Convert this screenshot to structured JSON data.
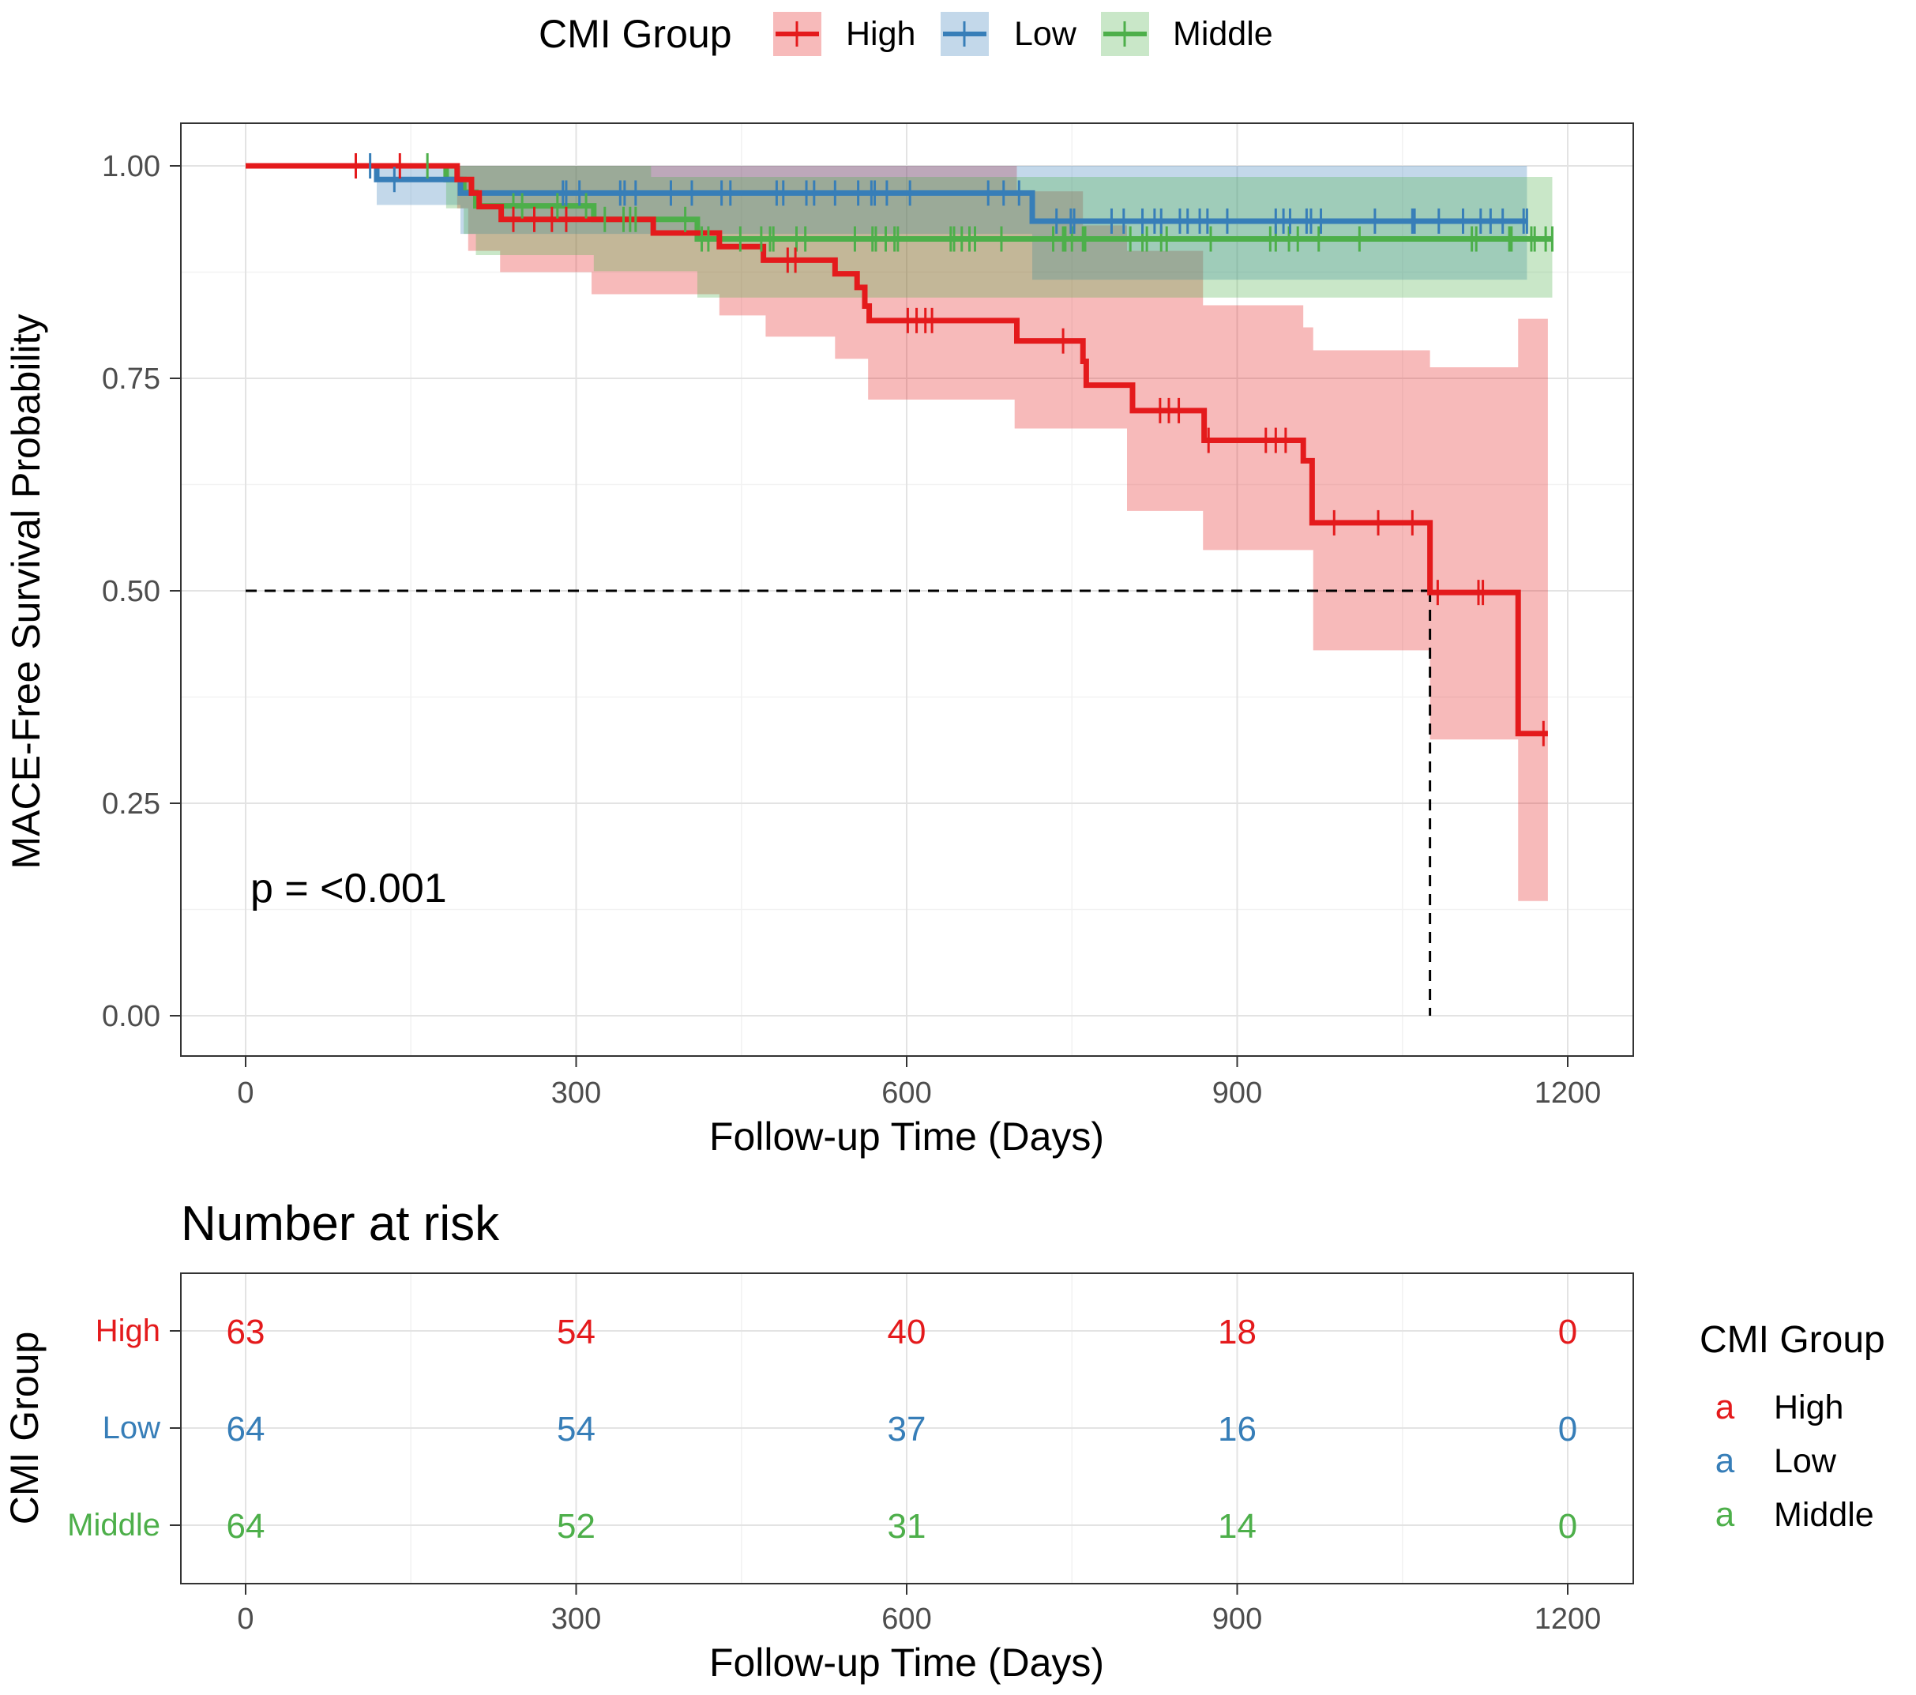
{
  "chart_data": [
    {
      "type": "line",
      "subtype": "kaplan-meier",
      "title": "",
      "xlabel": "Follow-up Time (Days)",
      "ylabel": "MACE-Free Survival Probability",
      "xlim": [
        0,
        1200
      ],
      "ylim": [
        0,
        1
      ],
      "x_ticks": [
        "0",
        "300",
        "600",
        "900",
        "1200"
      ],
      "y_ticks": [
        "0.00",
        "0.25",
        "0.50",
        "0.75",
        "1.00"
      ],
      "grid": true,
      "legend": {
        "title": "CMI Group",
        "placement": "top",
        "entries": [
          "High",
          "Low",
          "Middle"
        ]
      },
      "annotation": "p = <0.001",
      "median_line": {
        "survival": 0.5,
        "time": 1075
      },
      "series": [
        {
          "name": "High",
          "color": "#E41A1C",
          "end": 1182,
          "steps": [
            [
              0,
              1
            ],
            [
              192,
              0.984
            ],
            [
              205,
              0.968
            ],
            [
              212,
              0.952
            ],
            [
              232,
              0.937
            ],
            [
              370,
              0.921
            ],
            [
              430,
              0.905
            ],
            [
              470,
              0.889
            ],
            [
              535,
              0.873
            ],
            [
              555,
              0.857
            ],
            [
              562,
              0.835
            ],
            [
              566,
              0.818
            ],
            [
              700,
              0.794
            ],
            [
              760,
              0.77
            ],
            [
              763,
              0.742
            ],
            [
              805,
              0.712
            ],
            [
              870,
              0.677
            ],
            [
              960,
              0.653
            ],
            [
              968,
              0.58
            ],
            [
              1075,
              0.498
            ],
            [
              1155,
              0.332
            ]
          ],
          "ci_upper": [
            [
              0,
              1
            ],
            [
              600,
              1
            ],
            [
              700,
              0.97
            ],
            [
              760,
              0.93
            ],
            [
              800,
              0.9
            ],
            [
              869,
              0.836
            ],
            [
              960,
              0.81
            ],
            [
              969,
              0.783
            ],
            [
              1075,
              0.763
            ],
            [
              1155,
              0.82
            ]
          ],
          "ci_lower": [
            [
              0,
              1
            ],
            [
              192,
              0.95
            ],
            [
              202,
              0.9
            ],
            [
              231,
              0.875
            ],
            [
              314,
              0.849
            ],
            [
              430,
              0.824
            ],
            [
              472,
              0.799
            ],
            [
              535,
              0.773
            ],
            [
              565,
              0.725
            ],
            [
              698,
              0.691
            ],
            [
              800,
              0.594
            ],
            [
              869,
              0.548
            ],
            [
              969,
              0.43
            ],
            [
              1075,
              0.325
            ],
            [
              1155,
              0.135
            ]
          ],
          "censored": [
            100,
            140,
            243,
            262,
            278,
            291,
            492,
            499,
            601,
            609,
            617,
            623,
            742,
            830,
            838,
            847,
            874,
            926,
            935,
            944,
            988,
            1028,
            1059,
            1082,
            1119,
            1123,
            1178
          ]
        },
        {
          "name": "Low",
          "color": "#377EB8",
          "end": 1163,
          "steps": [
            [
              0,
              1
            ],
            [
              119,
              0.984
            ],
            [
              195,
              0.968
            ],
            [
              714,
              0.935
            ]
          ],
          "ci_upper": [
            [
              0,
              1
            ]
          ],
          "ci_lower": [
            [
              0,
              1
            ],
            [
              119,
              0.954
            ],
            [
              195,
              0.92
            ],
            [
              714,
              0.866
            ]
          ],
          "censored": [
            113,
            135,
            288,
            291,
            303,
            340,
            344,
            354,
            386,
            405,
            432,
            440,
            482,
            488,
            509,
            516,
            535,
            556,
            568,
            571,
            582,
            603,
            674,
            688,
            702,
            736,
            749,
            752,
            786,
            797,
            814,
            825,
            831,
            848,
            855,
            866,
            873,
            891,
            935,
            942,
            948,
            963,
            967,
            976,
            1025,
            1059,
            1061,
            1083,
            1105,
            1121,
            1130,
            1141,
            1160,
            1163
          ]
        },
        {
          "name": "Middle",
          "color": "#4DAF4A",
          "end": 1186,
          "steps": [
            [
              0,
              1
            ],
            [
              182,
              0.984
            ],
            [
              198,
              0.969
            ],
            [
              209,
              0.953
            ],
            [
              316,
              0.937
            ],
            [
              410,
              0.914
            ]
          ],
          "ci_upper": [
            [
              0,
              1
            ],
            [
              368,
              0.987
            ]
          ],
          "ci_lower": [
            [
              0,
              1
            ],
            [
              182,
              0.95
            ],
            [
              198,
              0.92
            ],
            [
              209,
              0.895
            ],
            [
              316,
              0.876
            ],
            [
              410,
              0.845
            ]
          ],
          "censored": [
            165,
            243,
            251,
            283,
            309,
            326,
            343,
            349,
            354,
            399,
            414,
            420,
            449,
            468,
            476,
            479,
            500,
            508,
            553,
            569,
            572,
            581,
            589,
            592,
            640,
            643,
            650,
            657,
            662,
            686,
            733,
            742,
            744,
            750,
            760,
            762,
            803,
            814,
            818,
            831,
            836,
            876,
            930,
            935,
            947,
            955,
            974,
            1011,
            1113,
            1117,
            1147,
            1149,
            1167,
            1170,
            1180,
            1186
          ]
        }
      ]
    },
    {
      "type": "table",
      "title": "Number at risk",
      "xlabel": "Follow-up Time (Days)",
      "ylabel": "CMI Group",
      "times": [
        0,
        300,
        600,
        900,
        1200
      ],
      "x_ticks": [
        "0",
        "300",
        "600",
        "900",
        "1200"
      ],
      "rows": [
        {
          "name": "High",
          "color": "#E41A1C",
          "values": [
            63,
            54,
            40,
            18,
            0
          ]
        },
        {
          "name": "Low",
          "color": "#377EB8",
          "values": [
            64,
            54,
            37,
            16,
            0
          ]
        },
        {
          "name": "Middle",
          "color": "#4DAF4A",
          "values": [
            64,
            52,
            31,
            14,
            0
          ]
        }
      ],
      "legend": {
        "title": "CMI Group",
        "glyph": "a",
        "entries": [
          "High",
          "Low",
          "Middle"
        ]
      }
    }
  ]
}
